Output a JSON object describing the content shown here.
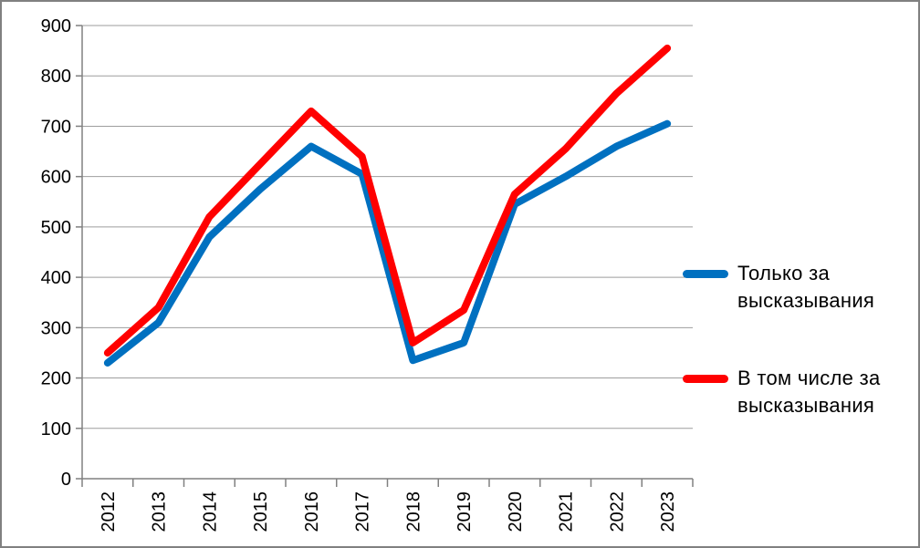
{
  "chart_data": {
    "type": "line",
    "title": "",
    "xlabel": "",
    "ylabel": "",
    "categories": [
      "2012",
      "2013",
      "2014",
      "2015",
      "2016",
      "2017",
      "2018",
      "2019",
      "2020",
      "2021",
      "2022",
      "2023"
    ],
    "series": [
      {
        "name": "Только за высказывания",
        "color": "#0070C0",
        "values": [
          230,
          310,
          480,
          575,
          660,
          605,
          235,
          270,
          545,
          600,
          660,
          705
        ]
      },
      {
        "name": "В том числе за высказывания",
        "color": "#FF0000",
        "values": [
          250,
          340,
          520,
          625,
          730,
          640,
          270,
          335,
          565,
          655,
          765,
          855
        ]
      }
    ],
    "ylim": [
      0,
      900
    ],
    "ytick_step": 100,
    "grid": true,
    "legend_position": "right"
  },
  "legend": {
    "items": [
      {
        "label": "Только за высказывания",
        "color": "#0070C0"
      },
      {
        "label": "В том числе за высказывания",
        "color": "#FF0000"
      }
    ]
  },
  "colors": {
    "background": "#FFFFFF",
    "border": "#808080",
    "axis": "#808080",
    "gridline": "#9E9E9E",
    "text": "#000000"
  }
}
